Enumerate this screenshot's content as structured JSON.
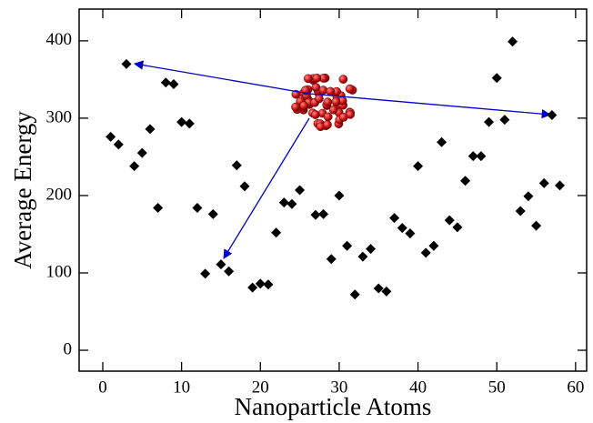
{
  "chart_data": {
    "type": "scatter",
    "x_label": "Nanoparticle Atoms",
    "y_label": "Average Energy",
    "color": "#000000",
    "x": [
      1,
      2,
      3,
      4,
      5,
      6,
      7,
      8,
      9,
      10,
      11,
      12,
      13,
      14,
      15,
      16,
      17,
      18,
      19,
      20,
      21,
      22,
      23,
      24,
      25,
      27,
      28,
      29,
      30,
      31,
      32,
      33,
      34,
      35,
      36,
      37,
      38,
      39,
      40,
      41,
      42,
      43,
      44,
      45,
      46,
      47,
      48,
      49,
      50,
      51,
      52,
      53,
      54,
      55,
      56,
      57,
      58
    ],
    "values": [
      276,
      266,
      370,
      238,
      255,
      286,
      184,
      346,
      344,
      295,
      293,
      184,
      99,
      176,
      111,
      102,
      239,
      212,
      81,
      86,
      85,
      152,
      191,
      189,
      207,
      175,
      176,
      118,
      200,
      135,
      72,
      121,
      131,
      80,
      76,
      171,
      158,
      151,
      238,
      126,
      135,
      269,
      168,
      159,
      219,
      251,
      251,
      295,
      352,
      298,
      399,
      180,
      199,
      161,
      216,
      304,
      213
    ],
    "xlim": [
      -3,
      61.4
    ],
    "ylim": [
      -27,
      441
    ],
    "xticks": [
      0,
      10,
      20,
      30,
      40,
      50,
      60
    ],
    "yticks": [
      0,
      100,
      200,
      300,
      400
    ]
  }
}
